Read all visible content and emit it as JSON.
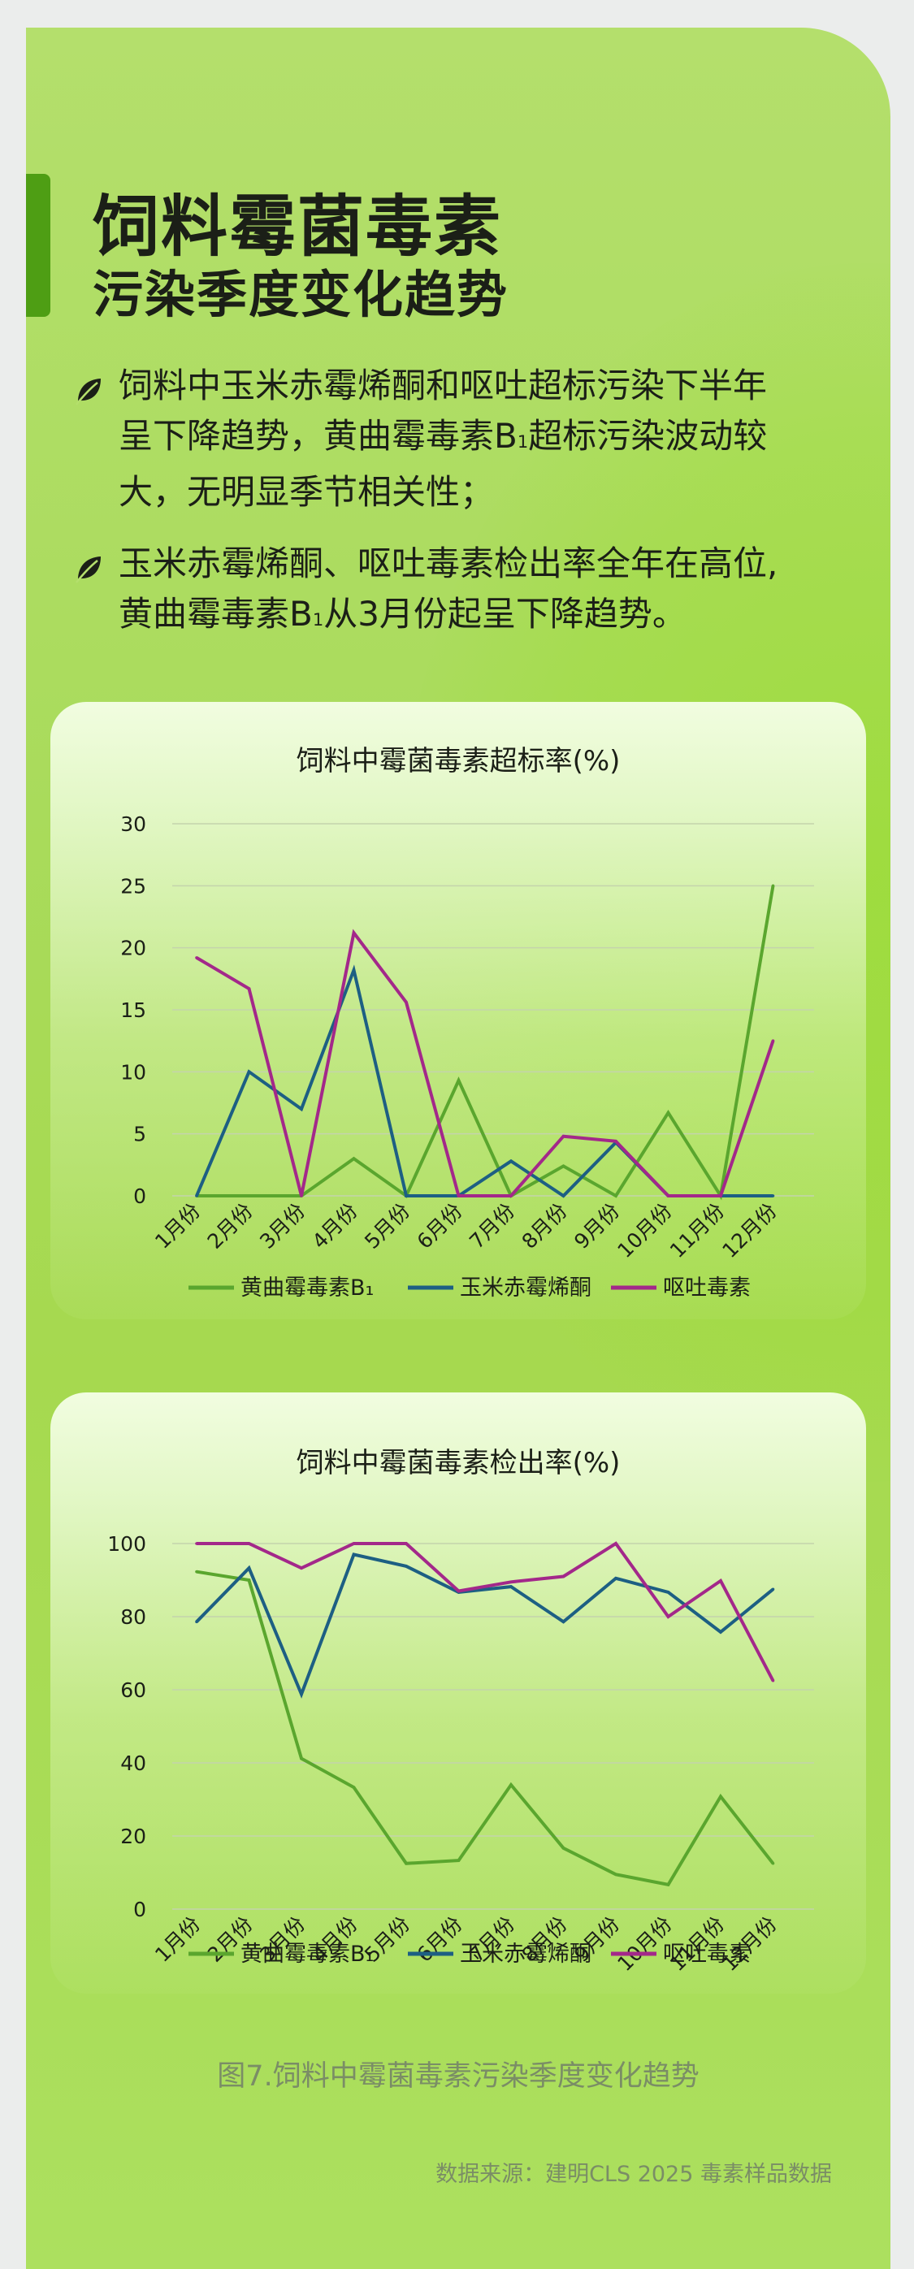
{
  "title": {
    "line1": "饲料霉菌毒素",
    "line2": "污染季度变化趋势"
  },
  "bullets": [
    {
      "icon": "leaf-icon",
      "lines": [
        "饲料中玉米赤霉烯酮和呕吐超标污染下半年",
        "呈下降趋势，黄曲霉毒素B",
        "超标污染波动较",
        "大，无明显季节相关性；"
      ]
    },
    {
      "icon": "leaf-icon",
      "lines": [
        "玉米赤霉烯酮、呕吐毒素检出率全年在高位,",
        "黄曲霉毒素B",
        "从3月份起呈下降趋势。"
      ]
    }
  ],
  "subscript": "1",
  "colors": {
    "aflatoxin": "#5aa62e",
    "zearalenone": "#1d5f83",
    "vomitoxin": "#a3288a",
    "grid": "#c4d3ac",
    "text": "#1b1f17"
  },
  "chart_data": [
    {
      "type": "line",
      "title": "饲料中霉菌毒素超标率(%)",
      "categories": [
        "1月份",
        "2月份",
        "3月份",
        "4月份",
        "5月份",
        "6月份",
        "7月份",
        "8月份",
        "9月份",
        "10月份",
        "11月份",
        "12月份"
      ],
      "ylim": [
        0,
        30
      ],
      "yticks": [
        0,
        5,
        10,
        15,
        20,
        25,
        30
      ],
      "grid": true,
      "legend": "bottom",
      "series": [
        {
          "name": "黄曲霉毒素B₁",
          "color": "#5aa62e",
          "values": [
            0,
            0,
            0,
            3,
            0,
            9.3,
            0,
            2.4,
            0,
            6.7,
            0,
            25
          ]
        },
        {
          "name": "玉米赤霉烯酮",
          "color": "#1d5f83",
          "values": [
            0,
            10,
            7,
            18.2,
            0,
            0,
            2.8,
            0,
            4.3,
            0,
            0,
            0
          ]
        },
        {
          "name": "呕吐毒素",
          "color": "#a3288a",
          "values": [
            19.2,
            16.7,
            0,
            21.2,
            15.6,
            0,
            0,
            4.8,
            4.4,
            0,
            0,
            12.5
          ]
        }
      ]
    },
    {
      "type": "line",
      "title": "饲料中霉菌毒素检出率(%)",
      "categories": [
        "1月份",
        "2月份",
        "3月份",
        "4月份",
        "5月份",
        "6月份",
        "7月份",
        "8月份",
        "9月份",
        "10月份",
        "11月份",
        "12月份"
      ],
      "ylim": [
        0,
        100
      ],
      "yticks": [
        0,
        20,
        40,
        60,
        80,
        100
      ],
      "grid": true,
      "legend": "bottom",
      "series": [
        {
          "name": "黄曲霉毒素B₁",
          "color": "#5aa62e",
          "values": [
            92.3,
            90,
            41.2,
            33.3,
            12.5,
            13.3,
            34,
            16.7,
            9.5,
            6.7,
            30.8,
            12.5
          ]
        },
        {
          "name": "玉米赤霉烯酮",
          "color": "#1d5f83",
          "values": [
            78.6,
            93.3,
            58.8,
            97,
            93.8,
            86.7,
            88.2,
            78.6,
            90.5,
            86.7,
            75.8,
            87.5
          ]
        },
        {
          "name": "呕吐毒素",
          "color": "#a3288a",
          "values": [
            100,
            100,
            93.3,
            100,
            100,
            87,
            89.5,
            91,
            100,
            80,
            89.8,
            62.5
          ]
        }
      ]
    }
  ],
  "caption": "图7.饲料中霉菌毒素污染季度变化趋势",
  "source": "数据来源：建明CLS 2025 毒素样品数据"
}
